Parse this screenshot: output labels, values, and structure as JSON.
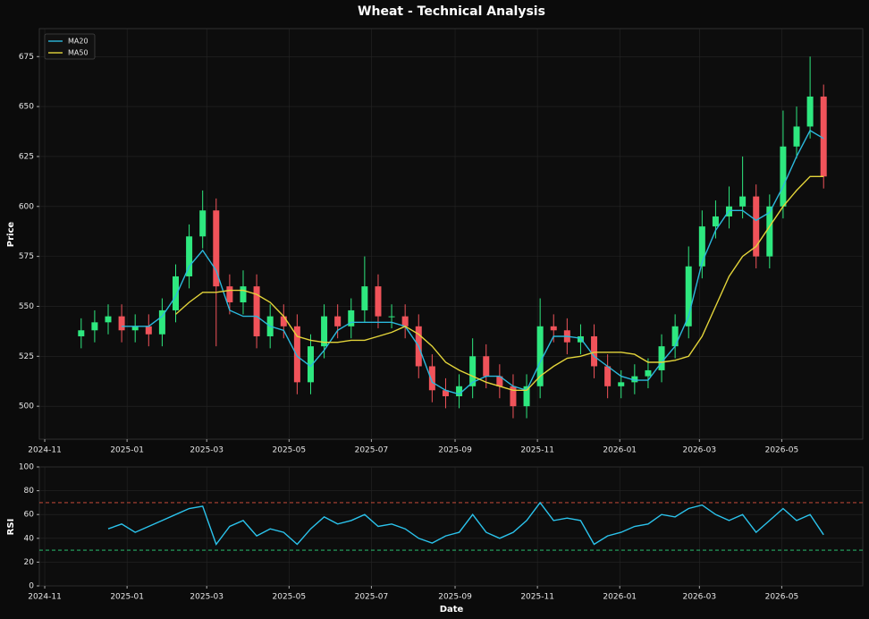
{
  "chart_data": [
    {
      "type": "candlestick",
      "title": "Wheat - Technical Analysis",
      "ylabel": "Price",
      "x": [
        "2024-11-28",
        "2024-12-08",
        "2024-12-18",
        "2024-12-28",
        "2025-01-07",
        "2025-01-17",
        "2025-01-27",
        "2025-02-06",
        "2025-02-16",
        "2025-02-26",
        "2025-03-08",
        "2025-03-18",
        "2025-03-28",
        "2025-04-07",
        "2025-04-17",
        "2025-04-27",
        "2025-05-07",
        "2025-05-17",
        "2025-05-27",
        "2025-06-06",
        "2025-06-16",
        "2025-06-26",
        "2025-07-06",
        "2025-07-16",
        "2025-07-26",
        "2025-08-05",
        "2025-08-15",
        "2025-08-25",
        "2025-09-04",
        "2025-09-14",
        "2025-09-24",
        "2025-10-04",
        "2025-10-14",
        "2025-10-24",
        "2025-11-03",
        "2025-11-13",
        "2025-11-23",
        "2025-12-03",
        "2025-12-13",
        "2025-12-23",
        "2026-01-02",
        "2026-01-12",
        "2026-01-22",
        "2026-02-01",
        "2026-02-11",
        "2026-02-21",
        "2026-03-03",
        "2026-03-13",
        "2026-03-23",
        "2026-04-02",
        "2026-04-12",
        "2026-04-22",
        "2026-05-02",
        "2026-05-12",
        "2026-05-22",
        "2026-06-01"
      ],
      "open": [
        535,
        538,
        542,
        545,
        538,
        540,
        536,
        548,
        565,
        585,
        598,
        560,
        552,
        560,
        535,
        545,
        540,
        512,
        530,
        545,
        540,
        548,
        560,
        545,
        545,
        540,
        520,
        508,
        505,
        510,
        525,
        515,
        510,
        500,
        510,
        540,
        538,
        532,
        535,
        520,
        510,
        512,
        515,
        518,
        530,
        540,
        570,
        590,
        595,
        600,
        605,
        575,
        600,
        630,
        640,
        655
      ],
      "high": [
        544,
        548,
        551,
        551,
        546,
        546,
        554,
        571,
        591,
        608,
        604,
        566,
        568,
        566,
        551,
        551,
        546,
        536,
        551,
        551,
        554,
        575,
        566,
        551,
        551,
        546,
        526,
        514,
        516,
        534,
        531,
        521,
        516,
        516,
        554,
        546,
        544,
        541,
        541,
        526,
        518,
        521,
        524,
        536,
        546,
        580,
        598,
        603,
        610,
        625,
        611,
        606,
        648,
        650,
        675,
        661
      ],
      "low": [
        529,
        532,
        536,
        532,
        532,
        530,
        530,
        542,
        559,
        579,
        530,
        546,
        546,
        529,
        529,
        534,
        506,
        506,
        524,
        534,
        534,
        542,
        539,
        539,
        534,
        514,
        502,
        499,
        499,
        504,
        509,
        504,
        494,
        494,
        504,
        532,
        526,
        526,
        514,
        504,
        504,
        506,
        509,
        512,
        524,
        534,
        564,
        584,
        589,
        594,
        569,
        569,
        594,
        624,
        634,
        609
      ],
      "close": [
        538,
        542,
        545,
        538,
        540,
        536,
        548,
        565,
        585,
        598,
        560,
        552,
        560,
        535,
        545,
        540,
        512,
        530,
        545,
        540,
        548,
        560,
        545,
        545,
        540,
        520,
        508,
        505,
        510,
        525,
        515,
        510,
        500,
        510,
        540,
        538,
        532,
        535,
        520,
        510,
        512,
        515,
        518,
        530,
        540,
        570,
        590,
        595,
        600,
        605,
        575,
        600,
        630,
        640,
        655,
        615
      ],
      "up_color": "#2ee87f",
      "down_color": "#f0535a",
      "series": [
        {
          "name": "MA20",
          "color": "#2bb8dc",
          "values": [
            null,
            null,
            null,
            540,
            540,
            540,
            545,
            555,
            570,
            578,
            568,
            548,
            545,
            545,
            540,
            538,
            525,
            520,
            528,
            538,
            542,
            542,
            542,
            542,
            540,
            530,
            512,
            508,
            506,
            512,
            515,
            515,
            510,
            508,
            522,
            535,
            535,
            534,
            525,
            520,
            515,
            513,
            513,
            522,
            530,
            545,
            572,
            588,
            598,
            598,
            593,
            597,
            610,
            625,
            638,
            634
          ]
        },
        {
          "name": "MA50",
          "color": "#e3d43a",
          "values": [
            null,
            null,
            null,
            null,
            null,
            null,
            null,
            546,
            552,
            557,
            557,
            558,
            558,
            556,
            552,
            545,
            535,
            533,
            532,
            532,
            533,
            533,
            535,
            537,
            540,
            536,
            530,
            522,
            518,
            515,
            512,
            510,
            508,
            508,
            515,
            520,
            524,
            525,
            527,
            527,
            527,
            526,
            522,
            522,
            523,
            525,
            535,
            550,
            565,
            575,
            580,
            590,
            600,
            608,
            615,
            615
          ]
        }
      ],
      "xlim": [
        "2024-10-28",
        "2026-06-30"
      ],
      "xticks": [
        "2024-11",
        "2025-01",
        "2025-03",
        "2025-05",
        "2025-07",
        "2025-09",
        "2025-11",
        "2026-01",
        "2026-03",
        "2026-05"
      ],
      "ylim": [
        483.5,
        689
      ],
      "yticks": [
        500,
        525,
        550,
        575,
        600,
        625,
        650,
        675
      ],
      "grid": true,
      "legend": "upper left"
    },
    {
      "type": "line",
      "ylabel": "RSI",
      "xlabel": "Date",
      "x": [
        "2024-11-28",
        "2024-12-08",
        "2024-12-18",
        "2024-12-28",
        "2025-01-07",
        "2025-01-17",
        "2025-01-27",
        "2025-02-06",
        "2025-02-16",
        "2025-02-26",
        "2025-03-08",
        "2025-03-18",
        "2025-03-28",
        "2025-04-07",
        "2025-04-17",
        "2025-04-27",
        "2025-05-07",
        "2025-05-17",
        "2025-05-27",
        "2025-06-06",
        "2025-06-16",
        "2025-06-26",
        "2025-07-06",
        "2025-07-16",
        "2025-07-26",
        "2025-08-05",
        "2025-08-15",
        "2025-08-25",
        "2025-09-04",
        "2025-09-14",
        "2025-09-24",
        "2025-10-04",
        "2025-10-14",
        "2025-10-24",
        "2025-11-03",
        "2025-11-13",
        "2025-11-23",
        "2025-12-03",
        "2025-12-13",
        "2025-12-23",
        "2026-01-02",
        "2026-01-12",
        "2026-01-22",
        "2026-02-01",
        "2026-02-11",
        "2026-02-21",
        "2026-03-03",
        "2026-03-13",
        "2026-03-23",
        "2026-04-02",
        "2026-04-12",
        "2026-04-22",
        "2026-05-02",
        "2026-05-12",
        "2026-05-22",
        "2026-06-01"
      ],
      "series": [
        {
          "color": "#2bc3ec",
          "values": [
            null,
            null,
            48,
            52,
            45,
            50,
            55,
            60,
            65,
            67,
            35,
            50,
            55,
            42,
            48,
            45,
            35,
            48,
            58,
            52,
            55,
            60,
            50,
            52,
            48,
            40,
            36,
            42,
            45,
            60,
            45,
            40,
            45,
            55,
            70,
            55,
            57,
            55,
            35,
            42,
            45,
            50,
            52,
            60,
            58,
            65,
            68,
            60,
            55,
            60,
            45,
            55,
            65,
            55,
            60,
            43
          ]
        }
      ],
      "ref_lines": [
        {
          "value": 70,
          "color": "#e0533f"
        },
        {
          "value": 30,
          "color": "#2bd67b"
        }
      ],
      "xlim": [
        "2024-10-28",
        "2026-06-30"
      ],
      "xticks": [
        "2024-11",
        "2025-01",
        "2025-03",
        "2025-05",
        "2025-07",
        "2025-09",
        "2025-11",
        "2026-01",
        "2026-03",
        "2026-05"
      ],
      "ylim": [
        0,
        100
      ],
      "yticks": [
        0,
        20,
        40,
        60,
        80,
        100
      ],
      "grid": true
    }
  ]
}
